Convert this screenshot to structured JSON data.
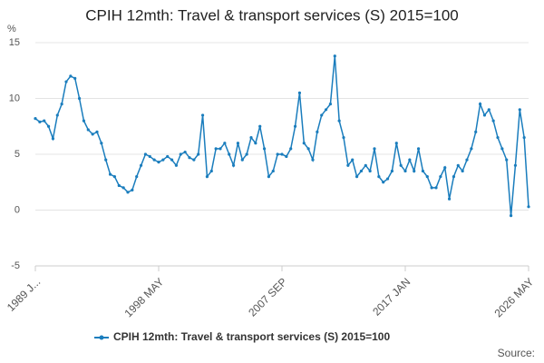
{
  "chart_data": {
    "type": "line",
    "title": "CPIH 12mth: Travel & transport services (S) 2015=100",
    "y_unit": "%",
    "source": "Source:",
    "categories": [
      "1989 J...",
      null,
      null,
      null,
      null,
      null,
      null,
      null,
      null,
      null,
      null,
      null,
      null,
      null,
      null,
      null,
      null,
      null,
      null,
      null,
      null,
      null,
      null,
      null,
      null,
      null,
      null,
      null,
      "1998 MAY",
      null,
      null,
      null,
      null,
      null,
      null,
      null,
      null,
      null,
      null,
      null,
      null,
      null,
      null,
      null,
      null,
      null,
      null,
      null,
      null,
      null,
      null,
      null,
      null,
      null,
      null,
      null,
      "2007 SEP",
      null,
      null,
      null,
      null,
      null,
      null,
      null,
      null,
      null,
      null,
      null,
      null,
      null,
      null,
      null,
      null,
      null,
      null,
      null,
      null,
      null,
      null,
      null,
      null,
      null,
      null,
      null,
      "2017 JAN",
      null,
      null,
      null,
      null,
      null,
      null,
      null,
      null,
      null,
      null,
      null,
      null,
      null,
      null,
      null,
      null,
      null,
      null,
      null,
      null,
      null,
      null,
      null,
      null,
      null,
      null,
      null,
      "2026 MAY"
    ],
    "series": [
      {
        "name": "CPIH 12mth: Travel & transport services (S) 2015=100",
        "color": "#1a7dbd",
        "values": [
          8.2,
          7.9,
          8.0,
          7.5,
          6.4,
          8.5,
          9.5,
          11.5,
          12.0,
          11.8,
          10.0,
          8.0,
          7.2,
          6.8,
          7.0,
          6.0,
          4.5,
          3.2,
          3.0,
          2.2,
          2.0,
          1.6,
          1.8,
          3.0,
          4.0,
          5.0,
          4.8,
          4.5,
          4.3,
          4.5,
          4.8,
          4.5,
          4.0,
          5.0,
          5.2,
          4.7,
          4.5,
          5.0,
          8.5,
          3.0,
          3.5,
          5.5,
          5.5,
          6.0,
          5.0,
          4.0,
          6.0,
          4.5,
          5.0,
          6.5,
          6.0,
          7.5,
          5.5,
          3.0,
          3.5,
          5.0,
          5.0,
          4.8,
          5.5,
          7.5,
          10.5,
          6.0,
          5.5,
          4.5,
          7.0,
          8.5,
          9.0,
          9.5,
          13.8,
          8.0,
          6.5,
          4.0,
          4.5,
          3.0,
          3.5,
          4.0,
          3.5,
          5.5,
          3.0,
          2.5,
          2.8,
          3.5,
          6.0,
          4.0,
          3.5,
          4.5,
          3.5,
          5.5,
          3.5,
          3.0,
          2.0,
          2.0,
          3.0,
          3.8,
          1.0,
          3.0,
          4.0,
          3.5,
          4.5,
          5.5,
          7.0,
          9.5,
          8.5,
          9.0,
          8.0,
          6.5,
          5.5,
          4.5,
          -0.5,
          4.0,
          9.0,
          6.5,
          0.3
        ]
      }
    ],
    "ylim": [
      -5,
      15
    ],
    "yticks": [
      -5,
      0,
      5,
      10,
      15
    ],
    "grid": true
  }
}
